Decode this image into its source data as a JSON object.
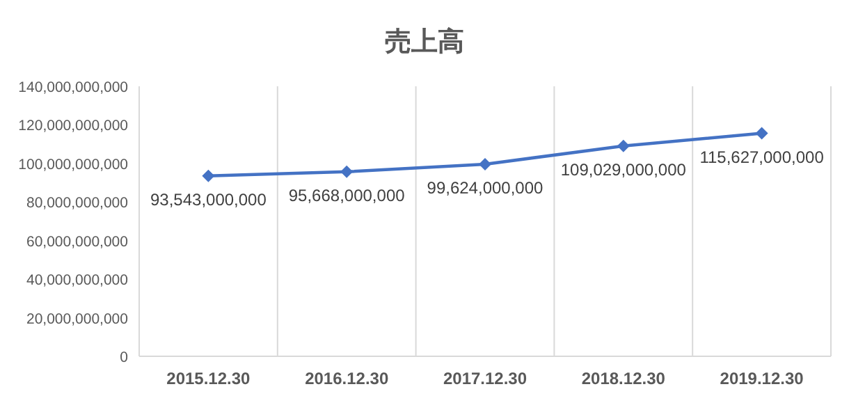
{
  "chart_data": {
    "type": "line",
    "title": "売上高",
    "categories": [
      "2015.12.30",
      "2016.12.30",
      "2017.12.30",
      "2018.12.30",
      "2019.12.30"
    ],
    "series": [
      {
        "color": "#4472c4",
        "values": [
          93543000000,
          95668000000,
          99624000000,
          109029000000,
          115627000000
        ],
        "value_labels": [
          "93,543,000,000",
          "95,668,000,000",
          "99,624,000,000",
          "109,029,000,000",
          "115,627,000,000"
        ]
      }
    ],
    "ylim": [
      0,
      140000000000
    ],
    "yticks": [
      0,
      {
        "value": 20000000000,
        "label": "20,000,000,000"
      },
      {
        "value": 40000000000,
        "label": "40,000,000,000"
      },
      {
        "value": 60000000000,
        "label": "60,000,000,000"
      },
      {
        "value": 80000000000,
        "label": "80,000,000,000"
      },
      {
        "value": 100000000000,
        "label": "100,000,000,000"
      },
      {
        "value": 120000000000,
        "label": "120,000,000,000"
      },
      {
        "value": 140000000000,
        "label": "140,000,000,000"
      }
    ],
    "grid": "x",
    "marker": "diamond",
    "line_style": "solid"
  }
}
